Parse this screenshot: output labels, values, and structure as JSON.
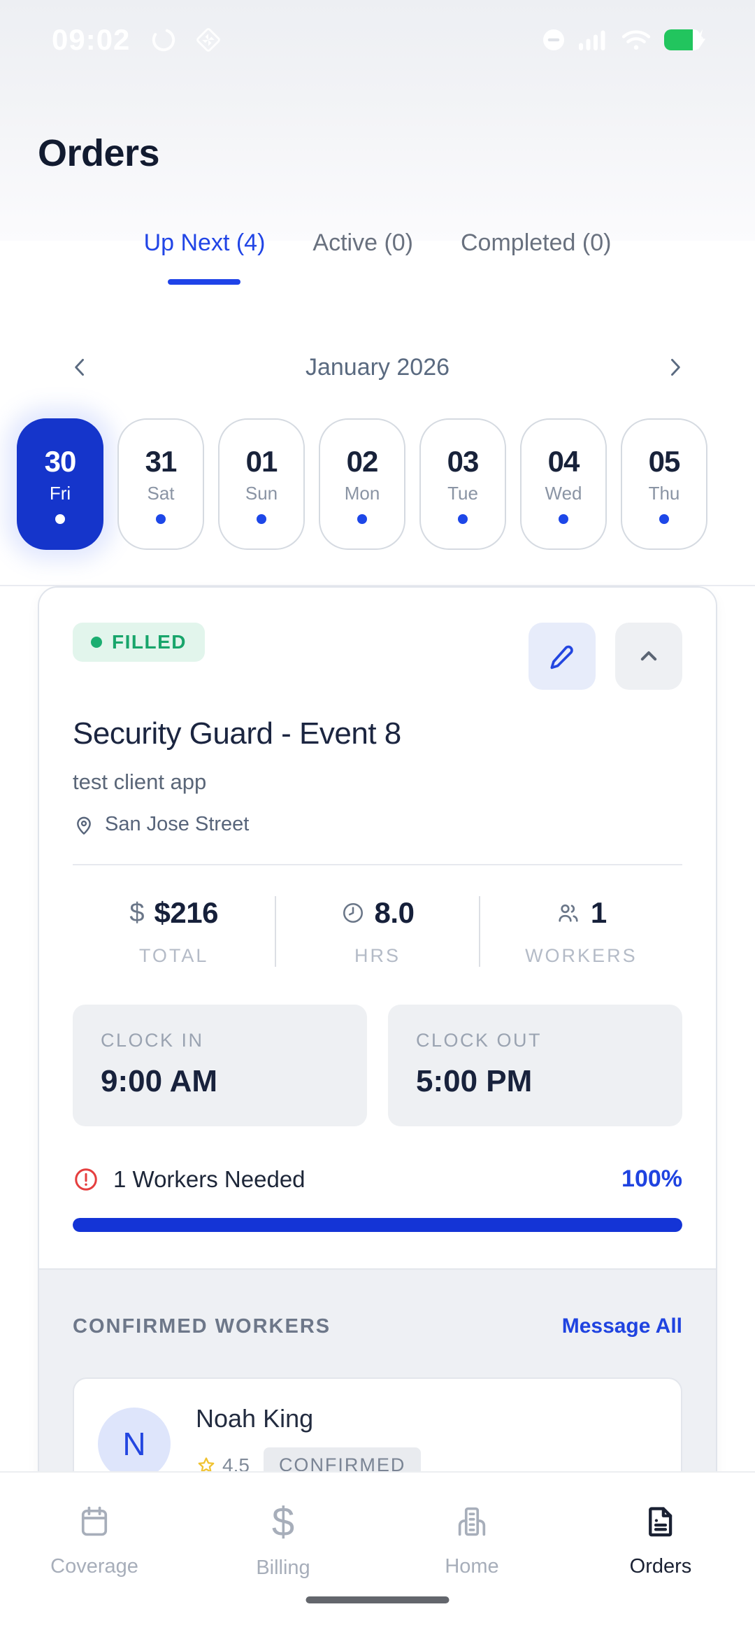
{
  "colors": {
    "accent_blue": "#1f43e0",
    "selected_day_blue": "#1535cb",
    "progress_blue": "#1434d6",
    "filled_green": "#1bae71",
    "filled_green_bg": "#e2f5ec",
    "alert_red": "#e53e3e",
    "battery_green": "#22c55e",
    "dark_text": "#1b2540",
    "muted_text": "#5a6678",
    "label_gray": "#b4bbc7"
  },
  "status_bar": {
    "time": "09:02"
  },
  "header": {
    "title": "Orders"
  },
  "tabs": {
    "items": [
      {
        "label": "Up Next (4)",
        "active": true
      },
      {
        "label": "Active (0)",
        "active": false
      },
      {
        "label": "Completed (0)",
        "active": false
      }
    ]
  },
  "calendar": {
    "month": "January 2026",
    "days": [
      {
        "num": "30",
        "day": "Fri",
        "selected": true
      },
      {
        "num": "31",
        "day": "Sat",
        "selected": false
      },
      {
        "num": "01",
        "day": "Sun",
        "selected": false
      },
      {
        "num": "02",
        "day": "Mon",
        "selected": false
      },
      {
        "num": "03",
        "day": "Tue",
        "selected": false
      },
      {
        "num": "04",
        "day": "Wed",
        "selected": false
      },
      {
        "num": "05",
        "day": "Thu",
        "selected": false
      }
    ]
  },
  "order_card": {
    "status_badge": "FILLED",
    "title": "Security Guard - Event 8",
    "client": "test client app",
    "location": "San Jose Street",
    "stats": [
      {
        "value": "$216",
        "label": "TOTAL",
        "icon": "dollar-icon"
      },
      {
        "value": "8.0",
        "label": "HRS",
        "icon": "clock-icon"
      },
      {
        "value": "1",
        "label": "WORKERS",
        "icon": "workers-icon"
      }
    ],
    "clock_in": {
      "label": "CLOCK IN",
      "value": "9:00 AM"
    },
    "clock_out": {
      "label": "CLOCK OUT",
      "value": "5:00 PM"
    },
    "workers_needed": "1 Workers Needed",
    "fill_percent_label": "100%",
    "fill_percent": 100,
    "confirmed": {
      "heading": "CONFIRMED WORKERS",
      "action": "Message All",
      "workers": [
        {
          "initial": "N",
          "name": "Noah King",
          "rating": "4.5",
          "status": "CONFIRMED"
        }
      ]
    }
  },
  "bottom_nav": {
    "items": [
      {
        "label": "Coverage",
        "icon": "calendar-icon",
        "active": false
      },
      {
        "label": "Billing",
        "icon": "dollar-icon",
        "active": false
      },
      {
        "label": "Home",
        "icon": "building-icon",
        "active": false
      },
      {
        "label": "Orders",
        "icon": "document-icon",
        "active": true
      }
    ]
  }
}
